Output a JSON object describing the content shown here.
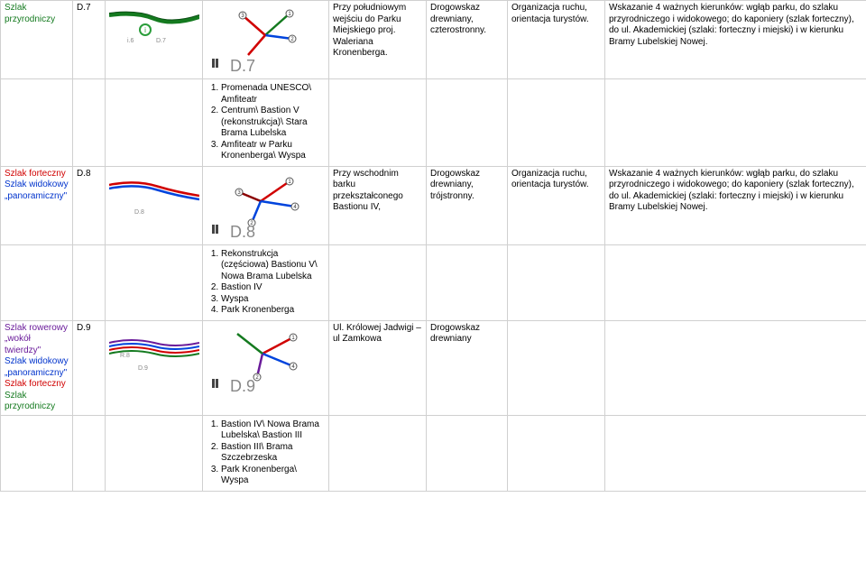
{
  "colors": {
    "green": "#147a1f",
    "red": "#d00000",
    "blue": "#0033cc",
    "purple": "#6a1b9a",
    "darkred": "#8b0000",
    "gray_text": "#888888",
    "border": "#d0d0d0",
    "bg": "#ffffff",
    "diagram_green_line": "#147a1f",
    "diagram_darkgreen": "#0b4d14",
    "diagram_blue": "#0044dd",
    "diagram_red": "#d00000",
    "diagram_circle": "#2a9d3a"
  },
  "rows": {
    "r0": {
      "trail_html": "<span class='green'>Szlak przyrodniczy</span>",
      "code": "D.7",
      "thumb_label_big": "D.7",
      "thumb_label_small_a": "i.6",
      "thumb_label_small_b": "D.7",
      "diagram_label": "D.7",
      "desc": "Przy południowym wejściu do Parku Miejskiego proj. Waleriana Kronenberga.",
      "sign": "Drogowskaz drewniany, czterostronny.",
      "org": "Organizacja ruchu, orientacja turystów.",
      "dir": "Wskazanie 4 ważnych kierunków: wgłąb parku, do szlaku przyrodniczego i widokowego; do kaponiery (szlak forteczny), do ul. Akademickiej (szlaki: forteczny i miejski) i w kierunku Bramy Lubelskiej Nowej."
    },
    "r1": {
      "list": [
        "Promenada UNESCO\\ Amfiteatr",
        "Centrum\\ Bastion V (rekonstrukcja)\\ Stara Brama Lubelska",
        "Amfiteatr w Parku Kronenberga\\ Wyspa"
      ]
    },
    "r2": {
      "trail_html": "<span class='red'>Szlak forteczny</span><br><span class='blue'>Szlak widokowy „panoramiczny\"</span>",
      "code": "D.8",
      "thumb_label_big": "D.8",
      "thumb_label_small_b": "D.8",
      "diagram_label": "D.8",
      "desc": "Przy wschodnim barku przekształconego Bastionu IV,",
      "sign": "Drogowskaz drewniany, trójstronny.",
      "org": "Organizacja ruchu, orientacja turystów.",
      "dir": "Wskazanie 4 ważnych kierunków: wgłąb parku, do szlaku przyrodniczego i widokowego; do kaponiery (szlak forteczny), do ul. Akademickiej (szlaki: forteczny i miejski) i w kierunku Bramy Lubelskiej Nowej."
    },
    "r3": {
      "list": [
        "Rekonstrukcja (częściowa) Bastionu V\\ Nowa Brama Lubelska",
        "Bastion IV",
        "Wyspa",
        "Park Kronenberga"
      ]
    },
    "r4": {
      "trail_html": "<span class='purple'>Szlak rowerowy „wokół twierdzy\"</span><br><span class='blue'>Szlak widokowy „panoramiczny\"</span><br><span class='red'>Szlak forteczny</span><br><span class='green'>Szlak przyrodniczy</span>",
      "code": "D.9",
      "thumb_label_big": "D.9",
      "thumb_label_small_a": "R.8",
      "thumb_label_small_b": "D.9",
      "diagram_label": "D.9",
      "desc": "Ul. Królowej Jadwigi – ul Zamkowa",
      "sign": "Drogowskaz drewniany"
    },
    "r5": {
      "list": [
        "Bastion IV\\ Nowa Brama Lubelska\\ Bastion III",
        "Bastion III\\ Brama Szczebrzeska",
        "Park Kronenberga\\ Wyspa"
      ]
    }
  }
}
